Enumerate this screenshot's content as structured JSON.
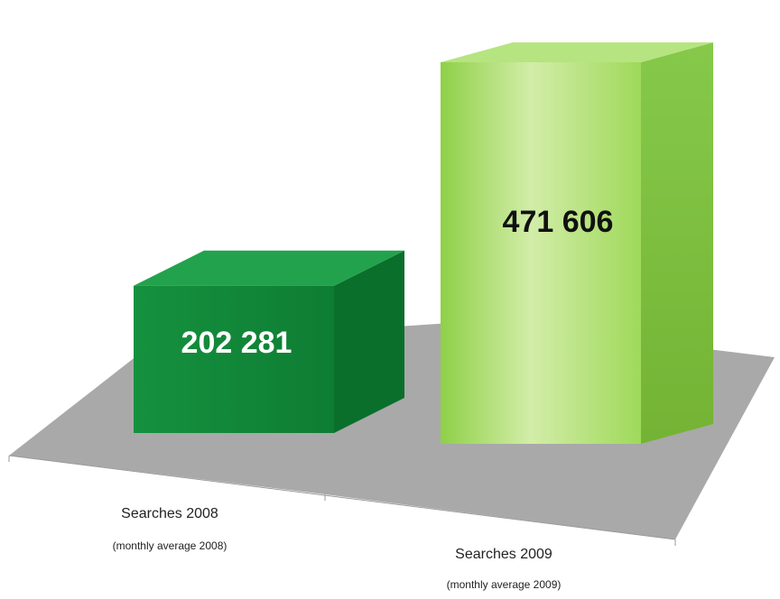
{
  "chart_data": {
    "type": "bar",
    "style": "3d-column",
    "categories": [
      "Searches 2008",
      "Searches 2009"
    ],
    "category_sublabels": [
      "(monthly average 2008)",
      "(monthly average 2009)"
    ],
    "values": [
      202281,
      471606
    ],
    "value_labels": [
      "202 281",
      "471 606"
    ],
    "title": "",
    "xlabel": "",
    "ylabel": "",
    "legend": "none",
    "grid": false
  },
  "colors": {
    "bar_2008_front": "#128a3a",
    "bar_2008_side": "#0b6f2c",
    "bar_2008_top": "#23a24e",
    "bar_2009_front_light": "#d2eda8",
    "bar_2009_front": "#9fd95a",
    "bar_2009_side": "#7dbe3b",
    "bar_2009_top": "#b6e480",
    "floor": "#a9a9a9",
    "label_2008": "#ffffff",
    "label_2009": "#111111"
  }
}
